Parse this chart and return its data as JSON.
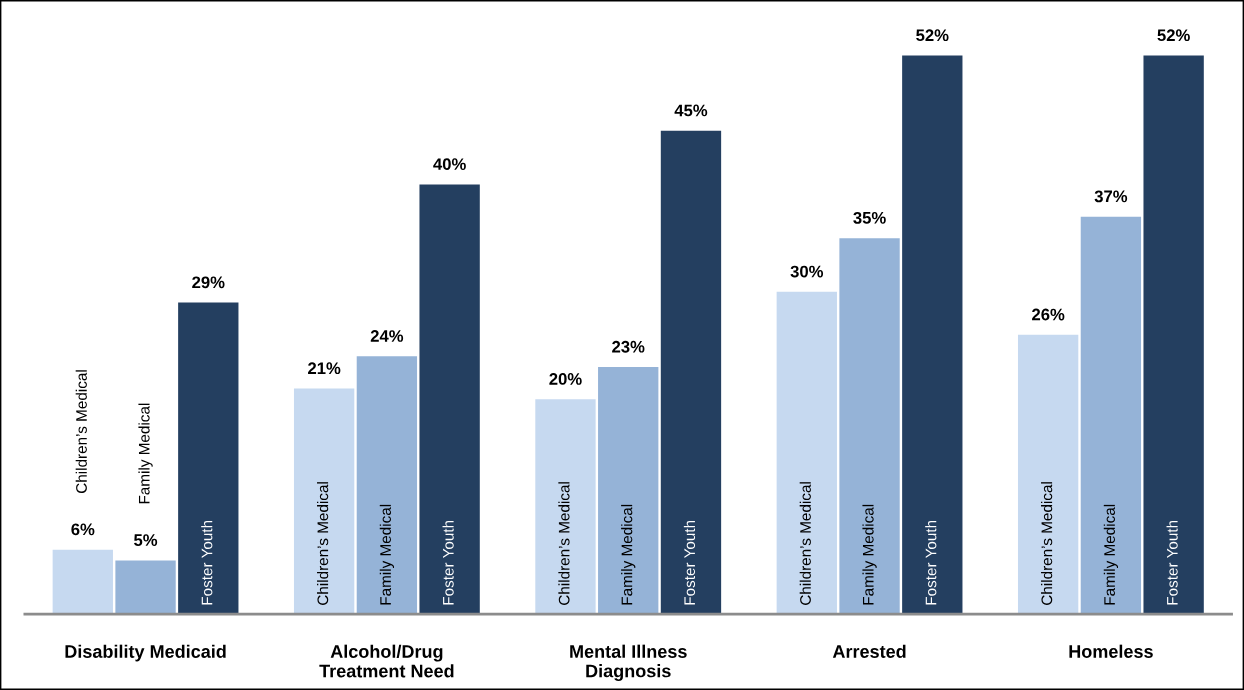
{
  "chart_data": {
    "type": "bar",
    "categories": [
      "Disability Medicaid",
      "Alcohol/Drug\nTreatment Need",
      "Mental Illness\nDiagnosis",
      "Arrested",
      "Homeless"
    ],
    "series": [
      {
        "name": "Children’s Medical",
        "color": "#c6d9f0",
        "values": [
          6,
          21,
          20,
          30,
          26
        ],
        "value_labels": [
          "6%",
          "21%",
          "20%",
          "30%",
          "26%"
        ]
      },
      {
        "name": "Family Medical",
        "color": "#95b3d7",
        "values": [
          5,
          24,
          23,
          35,
          37
        ],
        "value_labels": [
          "5%",
          "24%",
          "23%",
          "35%",
          "37%"
        ]
      },
      {
        "name": "Foster Youth",
        "color": "#243f60",
        "values": [
          29,
          40,
          45,
          52,
          52
        ],
        "value_labels": [
          "29%",
          "40%",
          "45%",
          "52%",
          "52%"
        ]
      }
    ],
    "legend": false,
    "grid": false
  }
}
